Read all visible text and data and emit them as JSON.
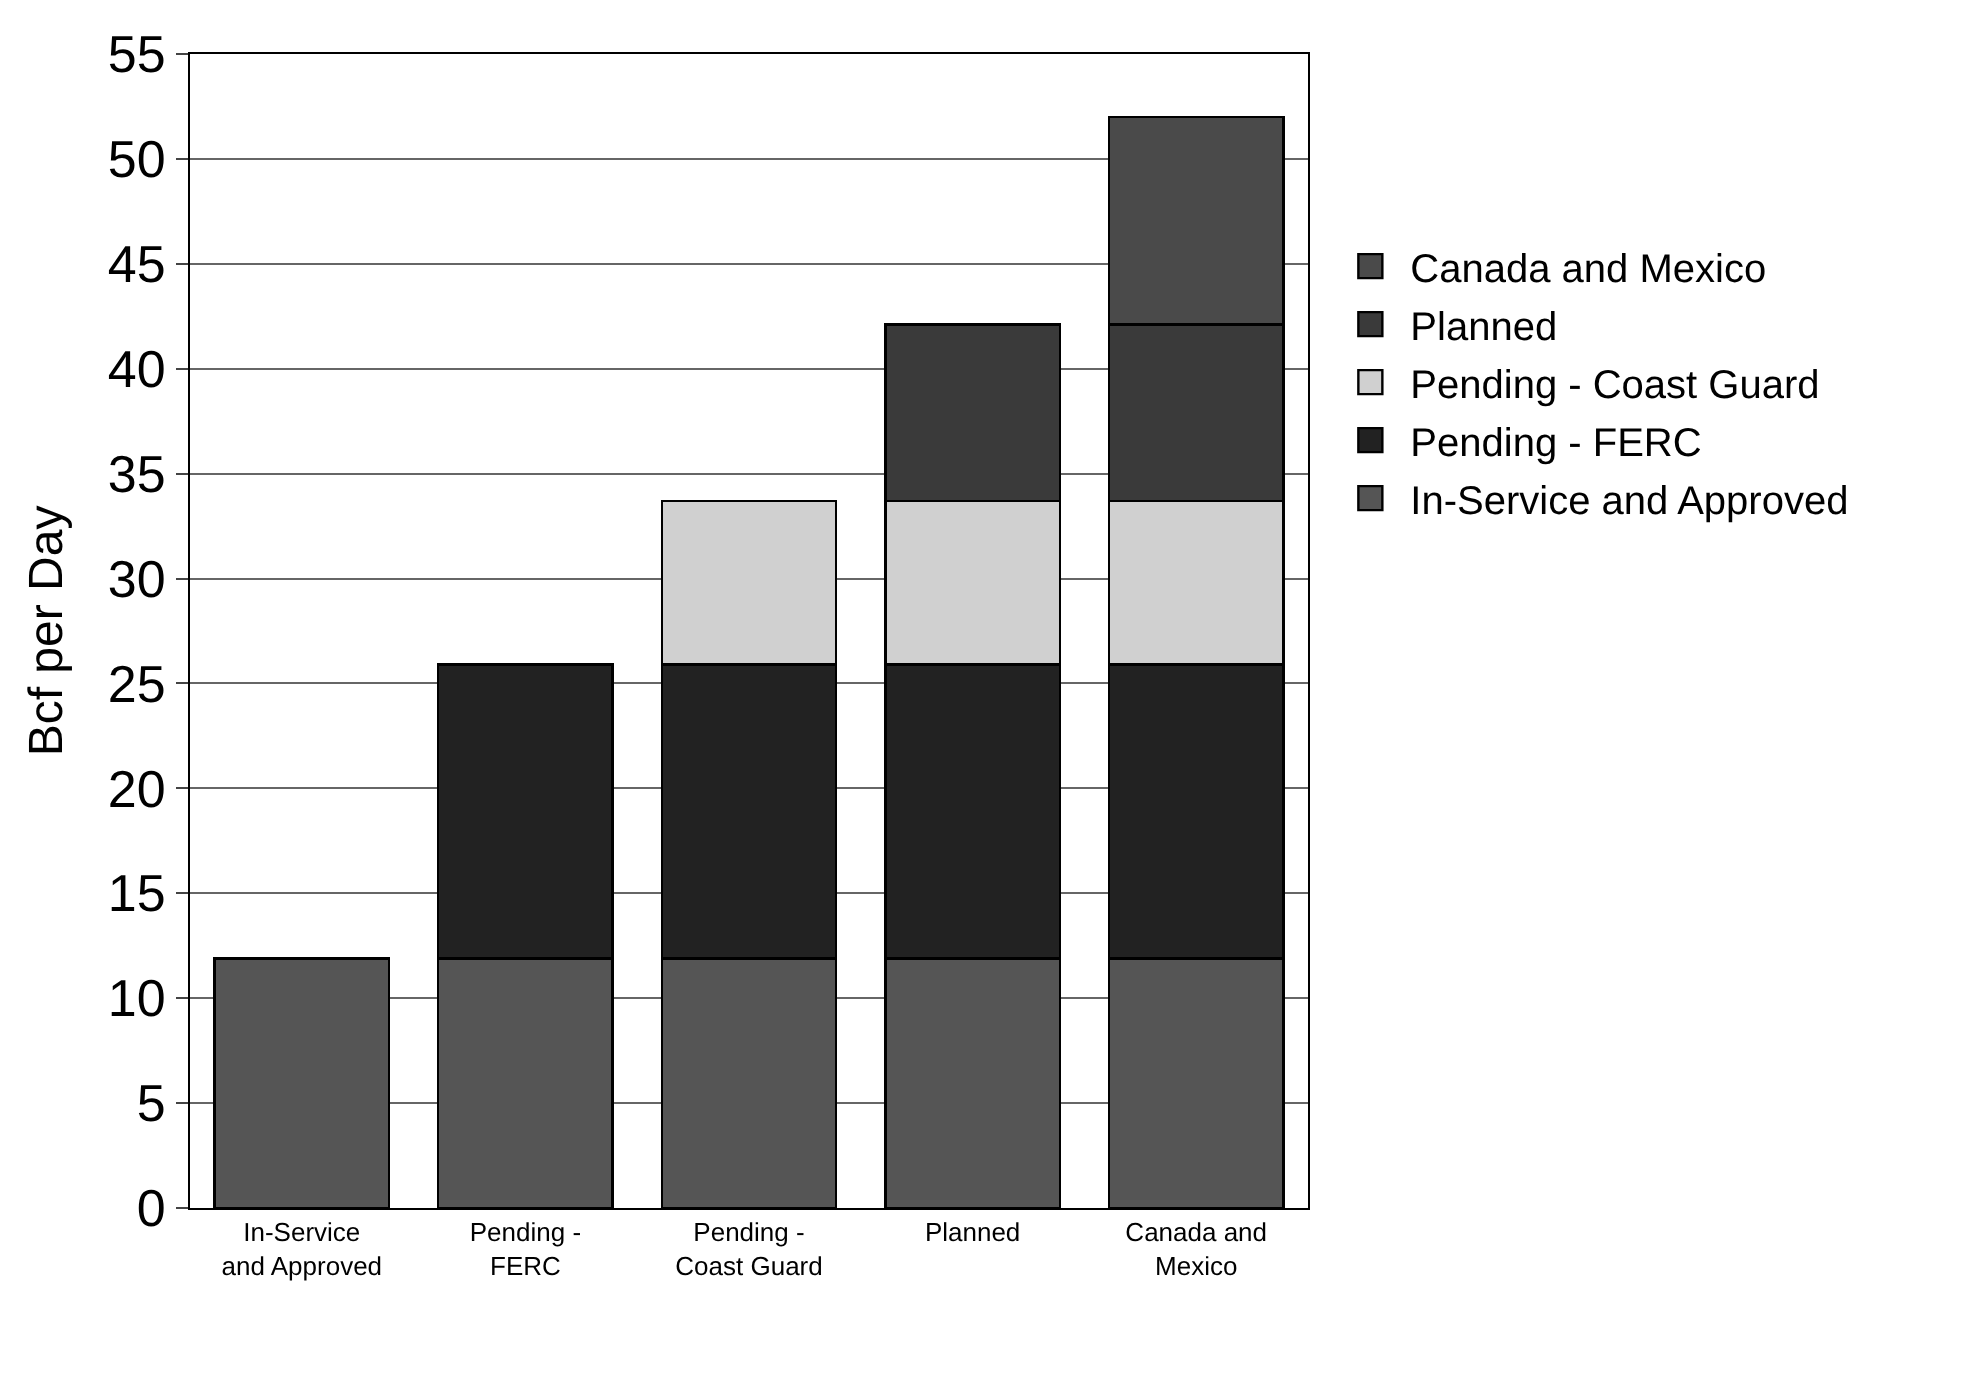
{
  "chart_data": {
    "type": "bar",
    "stacked": true,
    "ylabel": "Bcf per Day",
    "categories": [
      "In-Service and Approved",
      "Pending - FERC",
      "Pending - Coast Guard",
      "Planned",
      "Canada and Mexico"
    ],
    "series": [
      {
        "name": "In-Service and Approved",
        "color": "#555555",
        "values": [
          11.9,
          11.9,
          11.9,
          11.9,
          11.9
        ]
      },
      {
        "name": "Pending - FERC",
        "color": "#222222",
        "values": [
          null,
          14.0,
          14.0,
          14.0,
          14.0
        ]
      },
      {
        "name": "Pending - Coast Guard",
        "color": "#d0d0d0",
        "values": [
          null,
          null,
          7.8,
          7.8,
          7.8
        ]
      },
      {
        "name": "Planned",
        "color": "#3a3a3a",
        "values": [
          null,
          null,
          null,
          8.4,
          8.4
        ]
      },
      {
        "name": "Canada and Mexico",
        "color": "#4a4a4a",
        "values": [
          null,
          null,
          null,
          null,
          9.9
        ]
      }
    ],
    "ylim": [
      0,
      55
    ],
    "yticks": [
      0,
      5,
      10,
      15,
      20,
      25,
      30,
      35,
      40,
      45,
      50,
      55
    ],
    "grid": "y",
    "legend": "right"
  }
}
